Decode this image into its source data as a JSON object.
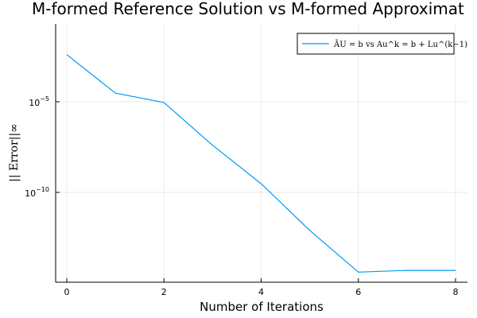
{
  "chart_data": {
    "type": "line",
    "title": "M-formed Reference Solution vs M-formed Approximat",
    "xlabel": "Number of Iterations",
    "ylabel": "|| Error||∞",
    "yscale": "log",
    "xlim": [
      0,
      8
    ],
    "xticks": [
      "0",
      "2",
      "4",
      "6",
      "8"
    ],
    "yticks": [
      {
        "base": "10",
        "exp": "−5",
        "value": 1e-05
      },
      {
        "base": "10",
        "exp": "−10",
        "value": 1e-10
      }
    ],
    "grid": true,
    "legend_position": "top-right",
    "series": [
      {
        "name": "ÃU = b vs Au^k = b + Lu^(k−1)",
        "color": "#009AF9",
        "x": [
          0,
          1,
          2,
          3,
          4,
          5,
          6,
          7,
          8
        ],
        "y": [
          0.004,
          3e-05,
          9e-06,
          4e-08,
          3e-10,
          8e-13,
          4e-15,
          5e-15,
          5e-15
        ]
      }
    ]
  }
}
